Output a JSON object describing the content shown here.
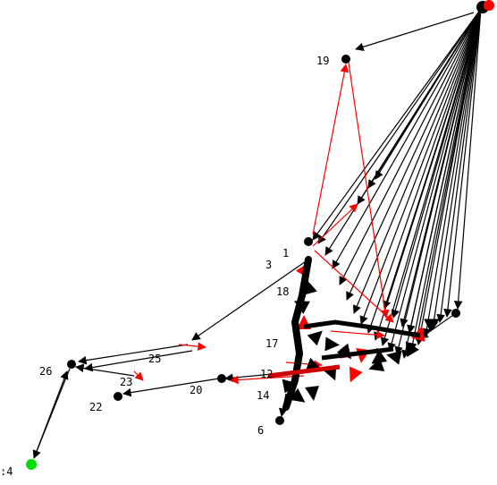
{
  "graph": {
    "colors": {
      "background": "#ffffff",
      "edge_default": "#000000",
      "edge_highlight": "#ff0000",
      "node_default": "#000000",
      "node_start": "#00dd00",
      "node_end": "#ff0000"
    },
    "nodes": [
      {
        "id": "hub",
        "label": ""
      },
      {
        "id": "n19",
        "label": "19"
      },
      {
        "id": "n1",
        "label": "1"
      },
      {
        "id": "n3",
        "label": "3"
      },
      {
        "id": "n18",
        "label": "18"
      },
      {
        "id": "n17",
        "label": "17"
      },
      {
        "id": "n12",
        "label": "12"
      },
      {
        "id": "n14",
        "label": "14"
      },
      {
        "id": "n6",
        "label": "6"
      },
      {
        "id": "n20",
        "label": "20"
      },
      {
        "id": "n22",
        "label": "22"
      },
      {
        "id": "n23",
        "label": "23"
      },
      {
        "id": "n25",
        "label": "25"
      },
      {
        "id": "n26",
        "label": "26"
      },
      {
        "id": "n4",
        "label": ":4"
      },
      {
        "id": "right",
        "label": ""
      },
      {
        "id": "cluster",
        "label": ""
      }
    ]
  }
}
